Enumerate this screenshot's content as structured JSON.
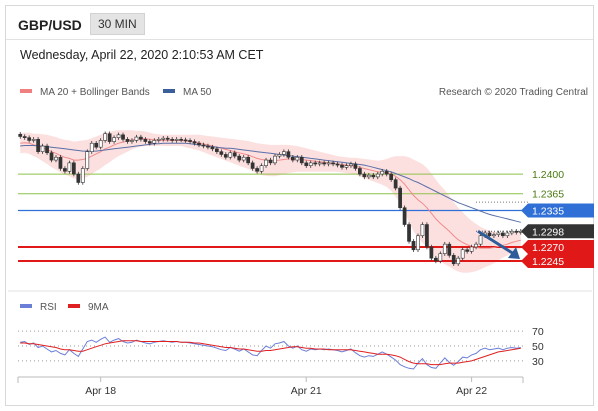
{
  "header": {
    "symbol": "GBP/USD",
    "timeframe": "30 MIN",
    "datetime": "Wednesday, April 22, 2020 2:10:53 AM CET"
  },
  "legend": {
    "ma20_label": "MA 20 + Bollinger Bands",
    "ma50_label": "MA 50",
    "credit": "Research © 2020 Trading Central",
    "ma20_color": "#f08080",
    "ma50_color": "#3a5f9a"
  },
  "rsi_legend": {
    "rsi_label": "RSI",
    "ma_label": "9MA",
    "rsi_color": "#6b7fd7",
    "ma_color": "#e02020"
  },
  "chart_data": {
    "type": "candlestick",
    "ylim": [
      1.2195,
      1.2525
    ],
    "price_levels": [
      {
        "value": 1.24,
        "label": "1.2400",
        "style": "resistance",
        "color": "#8ec14a"
      },
      {
        "value": 1.2365,
        "label": "1.2365",
        "style": "resistance",
        "color": "#8ec14a"
      },
      {
        "value": 1.2335,
        "label": "1.2335",
        "style": "pivot",
        "color": "#2f6fd6"
      },
      {
        "value": 1.2298,
        "label": "1.2298",
        "style": "last-price",
        "color": "#333333"
      },
      {
        "value": 1.227,
        "label": "1.2270",
        "style": "support",
        "color": "#e01818"
      },
      {
        "value": 1.2245,
        "label": "1.2245",
        "style": "support",
        "color": "#e01818"
      }
    ],
    "x_ticks": [
      "Apr 18",
      "Apr 21",
      "Apr 22"
    ],
    "x_tick_index": [
      18,
      64,
      101
    ],
    "close": [
      1.2467,
      1.2465,
      1.246,
      1.2462,
      1.244,
      1.245,
      1.2438,
      1.2425,
      1.243,
      1.241,
      1.2405,
      1.242,
      1.24,
      1.2385,
      1.241,
      1.244,
      1.2455,
      1.2448,
      1.246,
      1.2472,
      1.2458,
      1.2465,
      1.247,
      1.2462,
      1.2458,
      1.246,
      1.2466,
      1.2462,
      1.2458,
      1.2455,
      1.246,
      1.2462,
      1.2464,
      1.2462,
      1.246,
      1.2462,
      1.2461,
      1.246,
      1.2458,
      1.2455,
      1.2452,
      1.245,
      1.2448,
      1.2445,
      1.244,
      1.2435,
      1.243,
      1.2438,
      1.2432,
      1.2425,
      1.243,
      1.242,
      1.241,
      1.2405,
      1.2415,
      1.2425,
      1.242,
      1.2432,
      1.2435,
      1.244,
      1.243,
      1.2425,
      1.243,
      1.242,
      1.2415,
      1.242,
      1.2418,
      1.242,
      1.2418,
      1.242,
      1.2418,
      1.2416,
      1.2412,
      1.2415,
      1.2418,
      1.241,
      1.24,
      1.2395,
      1.2398,
      1.2395,
      1.24,
      1.2405,
      1.24,
      1.239,
      1.2375,
      1.234,
      1.231,
      1.228,
      1.2265,
      1.229,
      1.231,
      1.227,
      1.225,
      1.2245,
      1.2258,
      1.2275,
      1.2255,
      1.224,
      1.225,
      1.2265,
      1.2262,
      1.227,
      1.2275,
      1.229,
      1.2295,
      1.229,
      1.2292,
      1.2295,
      1.229,
      1.2295,
      1.2298,
      1.2296,
      1.2298
    ],
    "ma20": [
      1.2455,
      1.2456,
      1.2455,
      1.2452,
      1.245,
      1.2447,
      1.2444,
      1.244,
      1.2437,
      1.2433,
      1.243,
      1.2428,
      1.2425,
      1.2425,
      1.2426,
      1.2428,
      1.2432,
      1.2436,
      1.244,
      1.2445,
      1.2448,
      1.2452,
      1.2455,
      1.2457,
      1.2459,
      1.2461,
      1.2462,
      1.2463,
      1.2463,
      1.2462,
      1.2461,
      1.2461,
      1.246,
      1.246,
      1.246,
      1.246,
      1.246,
      1.2459,
      1.2458,
      1.2457,
      1.2456,
      1.2454,
      1.2452,
      1.245,
      1.2448,
      1.2446,
      1.2444,
      1.2442,
      1.244,
      1.2438,
      1.2436,
      1.2434,
      1.2431,
      1.2428,
      1.2426,
      1.2425,
      1.2424,
      1.2424,
      1.2425,
      1.2426,
      1.2427,
      1.2427,
      1.2427,
      1.2426,
      1.2425,
      1.2424,
      1.2423,
      1.2422,
      1.2421,
      1.242,
      1.2419,
      1.2418,
      1.2417,
      1.2416,
      1.2415,
      1.2414,
      1.2412,
      1.241,
      1.2408,
      1.2406,
      1.2404,
      1.2403,
      1.2402,
      1.24,
      1.2396,
      1.239,
      1.2382,
      1.2372,
      1.2362,
      1.2354,
      1.2348,
      1.234,
      1.233,
      1.232,
      1.2312,
      1.2305,
      1.2298,
      1.229,
      1.2283,
      1.2278,
      1.2274,
      1.2271,
      1.2269,
      1.2268,
      1.2268,
      1.2268,
      1.2269,
      1.2271,
      1.2273,
      1.2275,
      1.2278,
      1.228,
      1.2282
    ],
    "ma50": [
      1.245,
      1.2451,
      1.2451,
      1.2451,
      1.245,
      1.245,
      1.2449,
      1.2448,
      1.2447,
      1.2446,
      1.2445,
      1.2444,
      1.2443,
      1.2442,
      1.2441,
      1.2441,
      1.2441,
      1.2441,
      1.2442,
      1.2443,
      1.2444,
      1.2445,
      1.2446,
      1.2447,
      1.2448,
      1.2449,
      1.245,
      1.2451,
      1.2452,
      1.2453,
      1.2454,
      1.2454,
      1.2455,
      1.2455,
      1.2455,
      1.2455,
      1.2455,
      1.2455,
      1.2454,
      1.2453,
      1.2452,
      1.2451,
      1.245,
      1.2449,
      1.2448,
      1.2447,
      1.2446,
      1.2446,
      1.2445,
      1.2444,
      1.2443,
      1.2442,
      1.2441,
      1.244,
      1.2439,
      1.2438,
      1.2437,
      1.2436,
      1.2435,
      1.2434,
      1.2433,
      1.2432,
      1.2431,
      1.243,
      1.2429,
      1.2428,
      1.2427,
      1.2426,
      1.2425,
      1.2424,
      1.2423,
      1.2422,
      1.2421,
      1.242,
      1.2419,
      1.2418,
      1.2417,
      1.2416,
      1.2414,
      1.2412,
      1.241,
      1.2408,
      1.2406,
      1.2404,
      1.2401,
      1.2398,
      1.2395,
      1.2392,
      1.2388,
      1.2385,
      1.2381,
      1.2377,
      1.2373,
      1.2369,
      1.2365,
      1.2361,
      1.2357,
      1.2353,
      1.2349,
      1.2346,
      1.2343,
      1.234,
      1.2337,
      1.2334,
      1.2331,
      1.2328,
      1.2326,
      1.2324,
      1.2322,
      1.232,
      1.2318,
      1.2316,
      1.2314
    ],
    "bb_width": [
      0.0018,
      0.0018,
      0.0019,
      0.002,
      0.0022,
      0.0024,
      0.0026,
      0.0028,
      0.0029,
      0.003,
      0.0031,
      0.0032,
      0.0033,
      0.0034,
      0.0034,
      0.0033,
      0.0032,
      0.0031,
      0.003,
      0.0029,
      0.0027,
      0.0025,
      0.0023,
      0.0021,
      0.0019,
      0.0017,
      0.0015,
      0.0014,
      0.0013,
      0.0012,
      0.0011,
      0.001,
      0.001,
      0.001,
      0.001,
      0.001,
      0.001,
      0.0011,
      0.0012,
      0.0013,
      0.0014,
      0.0015,
      0.0016,
      0.0017,
      0.0018,
      0.0019,
      0.002,
      0.0021,
      0.0022,
      0.0023,
      0.0024,
      0.0025,
      0.0026,
      0.0027,
      0.0028,
      0.0028,
      0.0028,
      0.0028,
      0.0027,
      0.0026,
      0.0025,
      0.0024,
      0.0023,
      0.0022,
      0.0021,
      0.002,
      0.0019,
      0.0018,
      0.0017,
      0.0016,
      0.0015,
      0.0014,
      0.0014,
      0.0014,
      0.0014,
      0.0015,
      0.0016,
      0.0017,
      0.0018,
      0.0019,
      0.002,
      0.0022,
      0.0025,
      0.003,
      0.0036,
      0.0042,
      0.005,
      0.0058,
      0.0064,
      0.0068,
      0.007,
      0.0071,
      0.0071,
      0.007,
      0.0068,
      0.0066,
      0.0063,
      0.006,
      0.0057,
      0.0054,
      0.005,
      0.0046,
      0.0042,
      0.0038,
      0.0034,
      0.0031,
      0.0028,
      0.0025,
      0.0022,
      0.002,
      0.0018,
      0.0016,
      0.0015
    ],
    "forecast_arrow": {
      "from": 1.2298,
      "to": 1.2252
    },
    "rsi": {
      "levels": [
        70,
        50,
        30
      ],
      "level_labels": [
        "70",
        "50",
        "30"
      ],
      "ylim": [
        15,
        85
      ],
      "rsi_values": [
        55,
        56,
        52,
        54,
        48,
        50,
        46,
        42,
        44,
        40,
        38,
        45,
        40,
        36,
        46,
        56,
        58,
        55,
        59,
        62,
        55,
        58,
        60,
        56,
        54,
        55,
        58,
        56,
        54,
        53,
        55,
        56,
        57,
        56,
        55,
        56,
        55,
        55,
        54,
        53,
        52,
        51,
        50,
        49,
        47,
        45,
        44,
        48,
        46,
        43,
        46,
        42,
        38,
        37,
        44,
        50,
        47,
        53,
        54,
        56,
        50,
        47,
        50,
        45,
        43,
        46,
        45,
        46,
        45,
        46,
        45,
        44,
        42,
        44,
        46,
        41,
        37,
        35,
        37,
        36,
        39,
        42,
        39,
        35,
        31,
        25,
        22,
        20,
        19,
        27,
        33,
        25,
        21,
        20,
        27,
        34,
        28,
        24,
        29,
        35,
        34,
        38,
        40,
        45,
        47,
        45,
        46,
        47,
        45,
        47,
        48,
        47,
        48
      ],
      "ma_values": [
        54,
        54,
        53,
        53,
        52,
        51,
        50,
        49,
        48,
        46,
        45,
        45,
        44,
        43,
        43,
        45,
        47,
        49,
        51,
        53,
        54,
        55,
        56,
        57,
        57,
        57,
        57,
        56,
        56,
        56,
        56,
        56,
        56,
        56,
        56,
        56,
        55,
        55,
        55,
        54,
        54,
        53,
        52,
        51,
        50,
        49,
        48,
        48,
        47,
        46,
        46,
        45,
        44,
        43,
        43,
        44,
        44,
        45,
        46,
        47,
        48,
        49,
        49,
        48,
        47,
        47,
        46,
        46,
        46,
        45,
        45,
        45,
        45,
        45,
        45,
        44,
        43,
        42,
        41,
        40,
        39,
        39,
        39,
        38,
        37,
        35,
        32,
        29,
        27,
        26,
        26,
        26,
        25,
        25,
        25,
        26,
        27,
        27,
        27,
        28,
        29,
        30,
        32,
        34,
        36,
        38,
        40,
        42,
        43,
        44,
        45,
        46,
        47
      ]
    }
  }
}
